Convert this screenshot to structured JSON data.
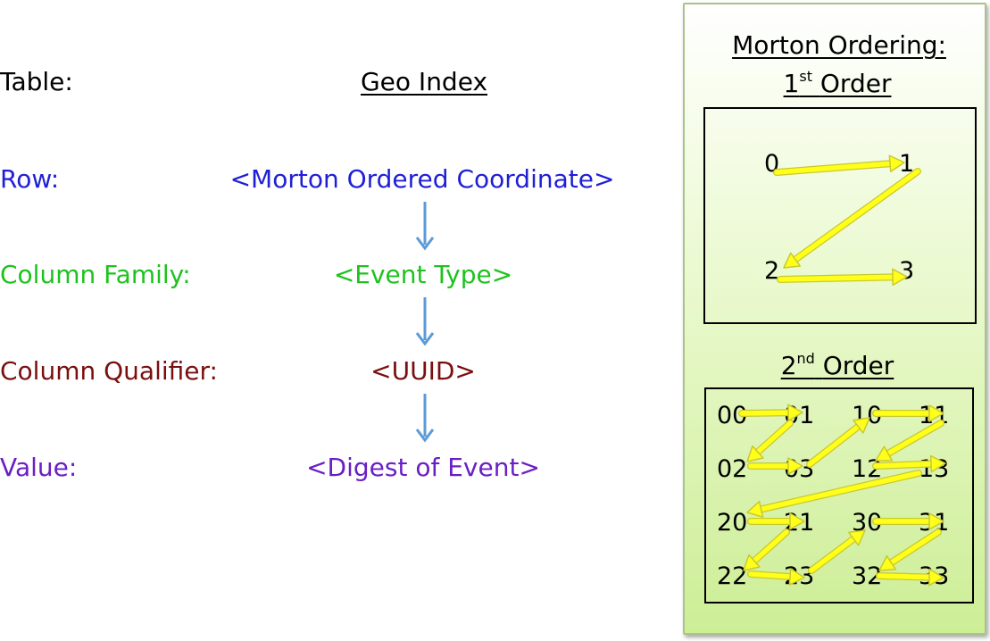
{
  "rows": [
    {
      "key": "table",
      "label": "Table:",
      "value": "Geo Index",
      "color": "#000000"
    },
    {
      "key": "row",
      "label": "Row:",
      "value": "<Morton Ordered Coordinate>",
      "color": "#1f1fd6"
    },
    {
      "key": "column_family",
      "label": "Column Family:",
      "value": "<Event Type>",
      "color": "#1ec21e"
    },
    {
      "key": "column_qualifier",
      "label": "Column Qualifier:",
      "value": "<UUID>",
      "color": "#7a0f0f"
    },
    {
      "key": "value",
      "label": "Value:",
      "value": "<Digest of Event>",
      "color": "#6a1fc4"
    }
  ],
  "connector_arrow_color": "#5b9bd5",
  "panel": {
    "title": "Morton Ordering:",
    "first_order": {
      "ordinal": "1",
      "suffix": "st",
      "label": "Order",
      "cells": [
        "0",
        "1",
        "2",
        "3"
      ]
    },
    "second_order": {
      "ordinal": "2",
      "suffix": "nd",
      "label": "Order",
      "cells": [
        "00",
        "01",
        "10",
        "11",
        "02",
        "03",
        "12",
        "13",
        "20",
        "21",
        "30",
        "31",
        "22",
        "23",
        "32",
        "33"
      ]
    },
    "arrow_color": "#ffff1a",
    "arrow_outline_color": "#c8c832",
    "background_color": "#d3f0a0"
  }
}
